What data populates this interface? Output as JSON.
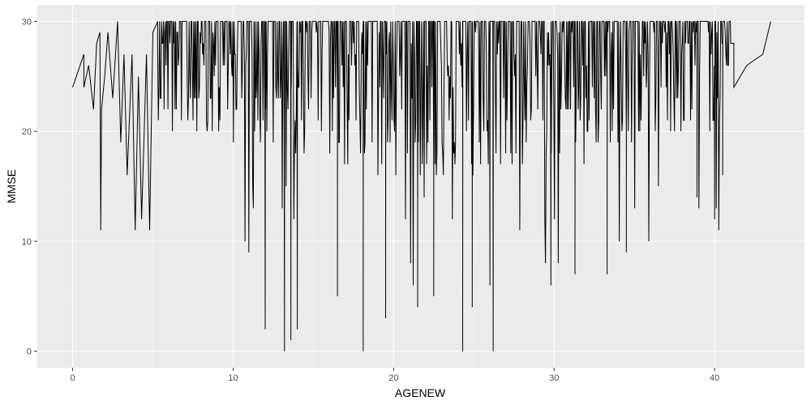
{
  "chart_data": {
    "type": "line",
    "xlabel": "AGENEW",
    "ylabel": "MMSE",
    "xlim": [
      -2.2,
      45.6
    ],
    "ylim": [
      -1.5,
      31.5
    ],
    "x_ticks": [
      0,
      10,
      20,
      30,
      40
    ],
    "y_ticks": [
      0,
      10,
      20,
      30
    ],
    "grid": true,
    "legend": "none",
    "colors": {
      "panel": "#ebebeb",
      "grid_major": "#ffffff",
      "grid_minor": "#f5f5f5",
      "line": "#000000",
      "tick_text": "#4d4d4d"
    },
    "series": [
      {
        "values_start": [
          [
            0,
            24
          ],
          [
            0.7,
            27
          ],
          [
            0.7,
            24
          ],
          [
            1.0,
            26
          ],
          [
            1.3,
            22
          ],
          [
            1.5,
            28
          ],
          [
            1.7,
            29
          ],
          [
            1.75,
            11
          ],
          [
            1.8,
            22
          ],
          [
            2.0,
            25
          ],
          [
            2.2,
            29
          ],
          [
            2.5,
            23
          ],
          [
            2.8,
            30
          ],
          [
            3.0,
            19
          ],
          [
            3.2,
            27
          ],
          [
            3.4,
            16
          ],
          [
            3.7,
            27
          ],
          [
            3.9,
            11
          ],
          [
            4.1,
            25
          ],
          [
            4.3,
            12
          ],
          [
            4.6,
            27
          ],
          [
            4.8,
            11
          ],
          [
            5.0,
            29
          ],
          [
            5.3,
            30
          ]
        ],
        "dense_region": {
          "x_from": 5.3,
          "x_to": 41.0,
          "y_max": 30,
          "y_min": 0
        },
        "deep_dips": [
          [
            12.0,
            2
          ],
          [
            13.2,
            0
          ],
          [
            13.6,
            1
          ],
          [
            14.0,
            2
          ],
          [
            16.5,
            5
          ],
          [
            18.1,
            0
          ],
          [
            19.5,
            3
          ],
          [
            21.5,
            4
          ],
          [
            22.5,
            5
          ],
          [
            24.3,
            0
          ],
          [
            24.9,
            4
          ],
          [
            26.2,
            0
          ],
          [
            26.0,
            6
          ],
          [
            29.8,
            6
          ],
          [
            31.3,
            7
          ],
          [
            33.3,
            7
          ],
          [
            34.5,
            9
          ],
          [
            38.9,
            14
          ],
          [
            40.0,
            12
          ],
          [
            40.5,
            16
          ]
        ],
        "values_end": [
          [
            41.0,
            28
          ],
          [
            41.2,
            28
          ],
          [
            41.2,
            24
          ],
          [
            42.0,
            26
          ],
          [
            43.0,
            27
          ],
          [
            43.5,
            30
          ]
        ]
      }
    ]
  }
}
